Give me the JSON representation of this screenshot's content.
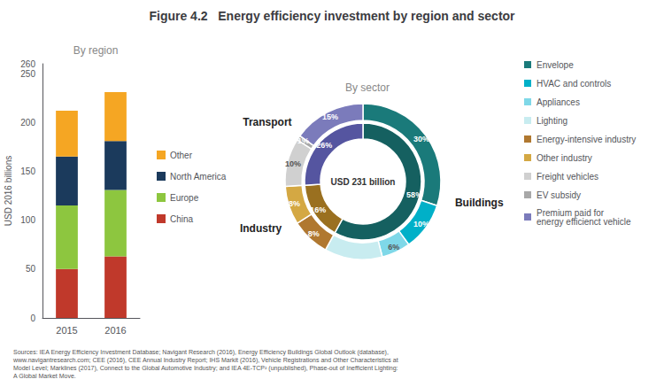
{
  "title": "Figure 4.2   Energy efficiency investment by region and sector",
  "annotations": [
    "Sources: IEA Energy Efficiency Investment Database; Navigant Research (2016), Energy Efficiency Buildings Global Outlook (database),\nwww.navigantresearch.com; CEE (2016), CEE Annual Industry Report; IHS Markit (2016), Vehicle Registrations and Other Characteristics at\nModel Level; Marklines (2017), Connect to the Global Automotive Industry; and IEA 4E-TCP² (unpublished), Phase-out of Inefficient Lighting:\nA Global Market Move."
  ],
  "chart_data": [
    {
      "type": "bar",
      "title": "By region",
      "categories": [
        "2015",
        "2016"
      ],
      "series": [
        {
          "name": "China",
          "color": "#c0392b",
          "values": [
            50,
            63
          ]
        },
        {
          "name": "Europe",
          "color": "#8dc63f",
          "values": [
            65,
            68
          ]
        },
        {
          "name": "North America",
          "color": "#1b3a5c",
          "values": [
            50,
            50
          ]
        },
        {
          "name": "Other",
          "color": "#f5a623",
          "values": [
            47,
            50
          ]
        }
      ],
      "stacked": true,
      "ylabel": "USD 2016 billions",
      "ylim": [
        0,
        260
      ],
      "yticks": [
        0,
        50,
        100,
        150,
        200,
        250
      ],
      "grid": false,
      "legend": "right"
    },
    {
      "type": "pie",
      "title": "By sector",
      "annotations": [
        "USD 231 billion"
      ],
      "data_labels": true,
      "legend": "right",
      "series": [
        {
          "categories": [
            "Buildings",
            "Industry",
            "Transport"
          ],
          "values": [
            58,
            16,
            26
          ],
          "value_labels": [
            "58%",
            "16%",
            "26%"
          ],
          "colors": [
            "#156060",
            "#9a7020",
            "#5555a0"
          ]
        },
        {
          "categories": [
            "Envelope",
            "HVAC and controls",
            "Appliances",
            "Lighting",
            "Energy-intensive industry",
            "Other industry",
            "Freight vehicles",
            "EV subsidy",
            "Premium paid for\nenergy efficienct vehicle"
          ],
          "values": [
            30,
            10,
            6,
            12,
            8,
            8,
            10,
            1,
            15
          ],
          "value_labels": [
            "30%",
            "10%",
            "6%",
            null,
            "8%",
            "8%",
            "10%",
            "1%",
            "15%"
          ],
          "colors": [
            "#1a7a7a",
            "#00b0c8",
            "#7fd8e8",
            "#c8ecf0",
            "#b07830",
            "#d4a843",
            "#d0d0d0",
            "#a8a8a8",
            "#7b7bbb"
          ]
        }
      ]
    }
  ]
}
